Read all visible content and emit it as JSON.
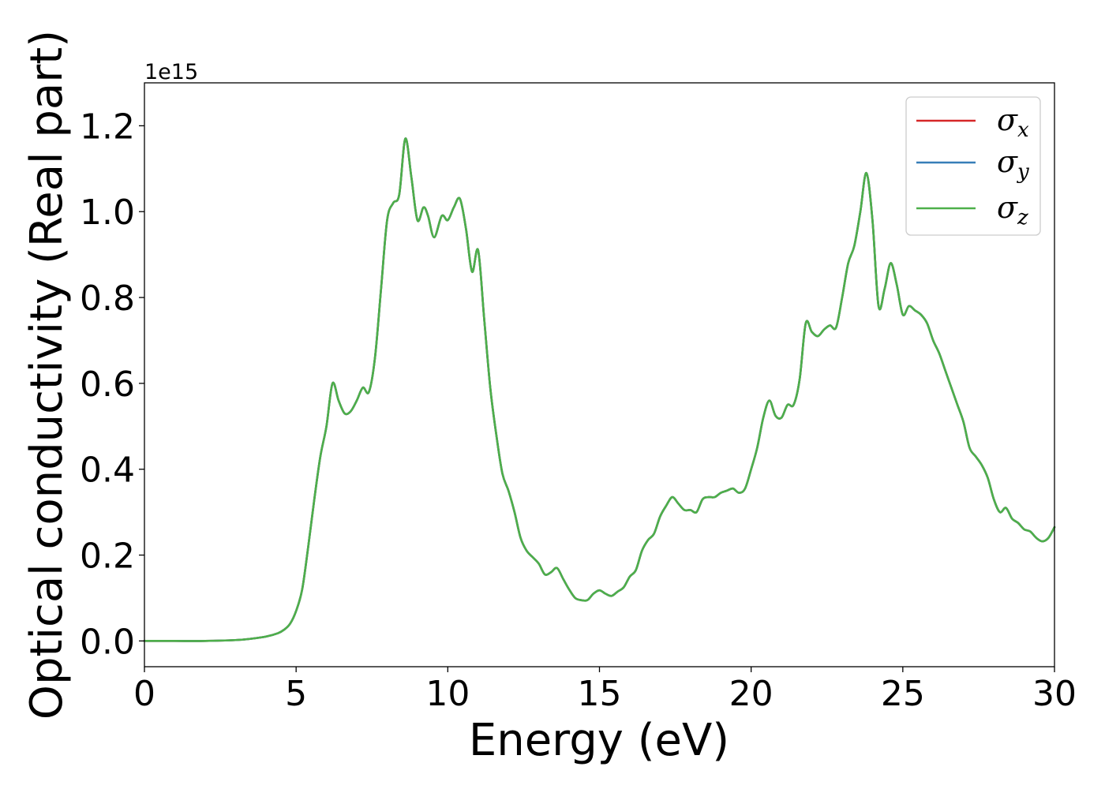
{
  "chart_data": {
    "type": "line",
    "xlabel": "Energy (eV)",
    "ylabel": "Optical conductivity (Real part)",
    "y_offset_label": "1e15",
    "xlim": [
      0,
      30
    ],
    "ylim": [
      -0.06,
      1.3
    ],
    "y_scale_factor": 1000000000000000.0,
    "xticks": [
      0,
      5,
      10,
      15,
      20,
      25,
      30
    ],
    "xtick_labels": [
      "0",
      "5",
      "10",
      "15",
      "20",
      "25",
      "30"
    ],
    "yticks": [
      0.0,
      0.2,
      0.4,
      0.6,
      0.8,
      1.0,
      1.2
    ],
    "ytick_labels": [
      "0.0",
      "0.2",
      "0.4",
      "0.6",
      "0.8",
      "1.0",
      "1.2"
    ],
    "grid": false,
    "legend_position": "top-right",
    "legend": [
      {
        "symbol": "σ",
        "sub": "x",
        "color": "#d62728"
      },
      {
        "symbol": "σ",
        "sub": "y",
        "color": "#377eb8"
      },
      {
        "symbol": "σ",
        "sub": "z",
        "color": "#4daf4a"
      }
    ],
    "x": [
      0,
      1,
      2,
      3,
      3.5,
      4,
      4.4,
      4.6,
      4.8,
      5.0,
      5.2,
      5.4,
      5.6,
      5.8,
      6.0,
      6.2,
      6.4,
      6.6,
      6.8,
      7.0,
      7.2,
      7.4,
      7.6,
      7.8,
      8.0,
      8.2,
      8.4,
      8.6,
      8.8,
      9.0,
      9.2,
      9.35,
      9.55,
      9.8,
      10.0,
      10.2,
      10.4,
      10.6,
      10.8,
      11.0,
      11.2,
      11.4,
      11.6,
      11.8,
      12.0,
      12.2,
      12.4,
      12.6,
      12.8,
      13.0,
      13.2,
      13.4,
      13.6,
      13.8,
      14.0,
      14.2,
      14.4,
      14.6,
      14.8,
      15.0,
      15.2,
      15.4,
      15.6,
      15.8,
      16.0,
      16.2,
      16.4,
      16.6,
      16.8,
      17.0,
      17.2,
      17.4,
      17.6,
      17.8,
      18.0,
      18.2,
      18.4,
      18.6,
      18.8,
      19.0,
      19.2,
      19.4,
      19.6,
      19.8,
      20.0,
      20.2,
      20.4,
      20.6,
      20.8,
      21.0,
      21.2,
      21.4,
      21.6,
      21.8,
      22.0,
      22.2,
      22.4,
      22.6,
      22.8,
      23.0,
      23.2,
      23.4,
      23.6,
      23.8,
      24.0,
      24.2,
      24.4,
      24.6,
      24.8,
      25.0,
      25.2,
      25.4,
      25.6,
      25.8,
      26.0,
      26.2,
      26.4,
      26.6,
      26.8,
      27.0,
      27.2,
      27.4,
      27.6,
      27.8,
      28.0,
      28.2,
      28.4,
      28.6,
      28.8,
      29.0,
      29.2,
      29.4,
      29.6,
      29.8,
      30.0
    ],
    "series": [
      {
        "name": "σx",
        "color": "#d62728",
        "values": [
          0.0,
          0.0,
          0.0,
          0.002,
          0.005,
          0.01,
          0.018,
          0.026,
          0.04,
          0.07,
          0.12,
          0.22,
          0.33,
          0.43,
          0.5,
          0.6,
          0.56,
          0.53,
          0.535,
          0.56,
          0.59,
          0.58,
          0.66,
          0.82,
          0.98,
          1.02,
          1.04,
          1.17,
          1.08,
          0.98,
          1.01,
          0.99,
          0.94,
          0.99,
          0.98,
          1.01,
          1.03,
          0.96,
          0.86,
          0.91,
          0.75,
          0.59,
          0.48,
          0.39,
          0.35,
          0.3,
          0.24,
          0.21,
          0.195,
          0.18,
          0.155,
          0.16,
          0.17,
          0.145,
          0.12,
          0.1,
          0.095,
          0.095,
          0.11,
          0.118,
          0.11,
          0.105,
          0.115,
          0.125,
          0.15,
          0.165,
          0.21,
          0.235,
          0.25,
          0.29,
          0.315,
          0.335,
          0.32,
          0.305,
          0.305,
          0.3,
          0.33,
          0.335,
          0.335,
          0.345,
          0.35,
          0.355,
          0.345,
          0.355,
          0.4,
          0.45,
          0.52,
          0.56,
          0.525,
          0.52,
          0.55,
          0.55,
          0.61,
          0.74,
          0.72,
          0.71,
          0.725,
          0.735,
          0.73,
          0.8,
          0.88,
          0.92,
          1.0,
          1.09,
          0.98,
          0.78,
          0.82,
          0.88,
          0.83,
          0.76,
          0.78,
          0.77,
          0.76,
          0.74,
          0.7,
          0.67,
          0.63,
          0.59,
          0.55,
          0.51,
          0.45,
          0.43,
          0.41,
          0.38,
          0.33,
          0.3,
          0.31,
          0.285,
          0.275,
          0.26,
          0.255,
          0.24,
          0.232,
          0.24,
          0.265
        ]
      },
      {
        "name": "σy",
        "color": "#377eb8",
        "values": [
          0.0,
          0.0,
          0.0,
          0.002,
          0.005,
          0.01,
          0.018,
          0.026,
          0.04,
          0.07,
          0.12,
          0.22,
          0.33,
          0.43,
          0.5,
          0.6,
          0.56,
          0.53,
          0.535,
          0.56,
          0.59,
          0.58,
          0.66,
          0.82,
          0.98,
          1.02,
          1.04,
          1.17,
          1.08,
          0.98,
          1.01,
          0.99,
          0.94,
          0.99,
          0.98,
          1.01,
          1.03,
          0.96,
          0.86,
          0.91,
          0.75,
          0.59,
          0.48,
          0.39,
          0.35,
          0.3,
          0.24,
          0.21,
          0.195,
          0.18,
          0.155,
          0.16,
          0.17,
          0.145,
          0.12,
          0.1,
          0.095,
          0.095,
          0.11,
          0.118,
          0.11,
          0.105,
          0.115,
          0.125,
          0.15,
          0.165,
          0.21,
          0.235,
          0.25,
          0.29,
          0.315,
          0.335,
          0.32,
          0.305,
          0.305,
          0.3,
          0.33,
          0.335,
          0.335,
          0.345,
          0.35,
          0.355,
          0.345,
          0.355,
          0.4,
          0.45,
          0.52,
          0.56,
          0.525,
          0.52,
          0.55,
          0.55,
          0.61,
          0.74,
          0.72,
          0.71,
          0.725,
          0.735,
          0.73,
          0.8,
          0.88,
          0.92,
          1.0,
          1.09,
          0.98,
          0.78,
          0.82,
          0.88,
          0.83,
          0.76,
          0.78,
          0.77,
          0.76,
          0.74,
          0.7,
          0.67,
          0.63,
          0.59,
          0.55,
          0.51,
          0.45,
          0.43,
          0.41,
          0.38,
          0.33,
          0.3,
          0.31,
          0.285,
          0.275,
          0.26,
          0.255,
          0.24,
          0.232,
          0.24,
          0.265
        ]
      },
      {
        "name": "σz",
        "color": "#4daf4a",
        "values": [
          0.0,
          0.0,
          0.0,
          0.002,
          0.005,
          0.01,
          0.018,
          0.026,
          0.04,
          0.07,
          0.12,
          0.22,
          0.33,
          0.43,
          0.5,
          0.6,
          0.56,
          0.53,
          0.535,
          0.56,
          0.59,
          0.58,
          0.66,
          0.82,
          0.98,
          1.02,
          1.04,
          1.17,
          1.08,
          0.98,
          1.01,
          0.99,
          0.94,
          0.99,
          0.98,
          1.01,
          1.03,
          0.96,
          0.86,
          0.91,
          0.75,
          0.59,
          0.48,
          0.39,
          0.35,
          0.3,
          0.24,
          0.21,
          0.195,
          0.18,
          0.155,
          0.16,
          0.17,
          0.145,
          0.12,
          0.1,
          0.095,
          0.095,
          0.11,
          0.118,
          0.11,
          0.105,
          0.115,
          0.125,
          0.15,
          0.165,
          0.21,
          0.235,
          0.25,
          0.29,
          0.315,
          0.335,
          0.32,
          0.305,
          0.305,
          0.3,
          0.33,
          0.335,
          0.335,
          0.345,
          0.35,
          0.355,
          0.345,
          0.355,
          0.4,
          0.45,
          0.52,
          0.56,
          0.525,
          0.52,
          0.55,
          0.55,
          0.61,
          0.74,
          0.72,
          0.71,
          0.725,
          0.735,
          0.73,
          0.8,
          0.88,
          0.92,
          1.0,
          1.09,
          0.98,
          0.78,
          0.82,
          0.88,
          0.83,
          0.76,
          0.78,
          0.77,
          0.76,
          0.74,
          0.7,
          0.67,
          0.63,
          0.59,
          0.55,
          0.51,
          0.45,
          0.43,
          0.41,
          0.38,
          0.33,
          0.3,
          0.31,
          0.285,
          0.275,
          0.26,
          0.255,
          0.24,
          0.232,
          0.24,
          0.265
        ]
      }
    ]
  }
}
